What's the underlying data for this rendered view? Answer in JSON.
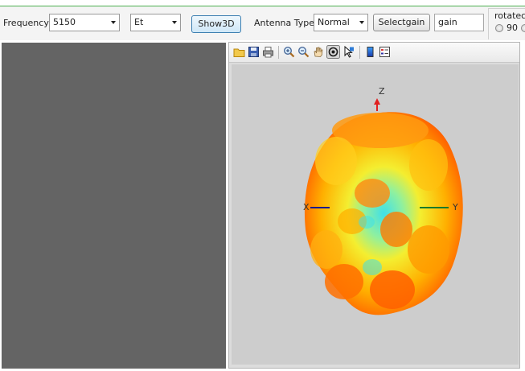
{
  "toolbar": {
    "frequency_label": "Frequency",
    "frequency_value": "5150",
    "component_value": "Et",
    "show3d_label": "Show3D",
    "antenna_type_label": "Antenna Type",
    "antenna_type_value": "Normal",
    "selectgain_label": "Selectgain",
    "gain_value": "gain",
    "rotated_label": "rotatec",
    "rotated_option": "90"
  },
  "viewer": {
    "axes": {
      "z": "Z",
      "x": "X",
      "y": "Y"
    },
    "tools": [
      "open-icon",
      "save-icon",
      "print-icon",
      "zoom-in-icon",
      "zoom-out-icon",
      "pan-hand-icon",
      "rotate-3d-icon",
      "select-arrow-icon",
      "colorbar-icon",
      "legend-icon"
    ],
    "colors": {
      "axis_z": "#e02020",
      "axis_x": "#1a1a8a",
      "axis_y": "#1a7a2a",
      "background": "#cdcdcd"
    }
  }
}
